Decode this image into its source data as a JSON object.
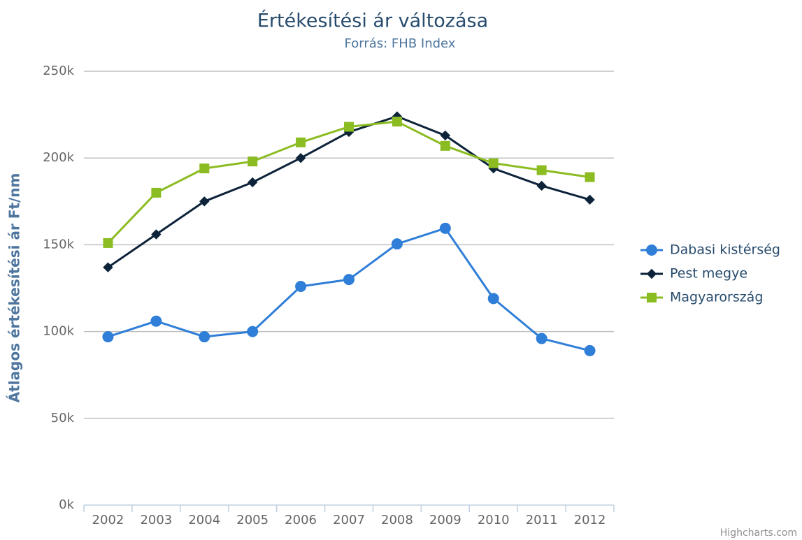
{
  "chart_data": {
    "type": "line",
    "title": "Értékesítési ár változása",
    "subtitle": "Forrás: FHB Index",
    "y_axis_label": "Átlagos értékesítési ár Ft/nm",
    "credits": "Highcharts.com",
    "categories": [
      "2002",
      "2003",
      "2004",
      "2005",
      "2006",
      "2007",
      "2008",
      "2009",
      "2010",
      "2011",
      "2012"
    ],
    "series": [
      {
        "name": "Dabasi kistérség",
        "color": "#2f7ed8",
        "marker": "circle",
        "values": [
          97000,
          106000,
          97000,
          100000,
          126000,
          130000,
          150500,
          159500,
          119000,
          96000,
          89000
        ]
      },
      {
        "name": "Pest megye",
        "color": "#0d233a",
        "marker": "diamond",
        "values": [
          137000,
          156000,
          175000,
          186000,
          200000,
          215000,
          224000,
          213000,
          194000,
          184000,
          176000
        ]
      },
      {
        "name": "Magyarország",
        "color": "#8bbc21",
        "marker": "square",
        "values": [
          151000,
          180000,
          194000,
          198000,
          209000,
          218000,
          221000,
          207000,
          197000,
          193000,
          189000
        ]
      }
    ],
    "ylim": [
      0,
      250000
    ],
    "yticks": [
      {
        "value": 0,
        "label": "0k"
      },
      {
        "value": 50000,
        "label": "50k"
      },
      {
        "value": 100000,
        "label": "100k"
      },
      {
        "value": 150000,
        "label": "150k"
      },
      {
        "value": 200000,
        "label": "200k"
      },
      {
        "value": 250000,
        "label": "250k"
      }
    ],
    "grid": true,
    "legend": "right"
  }
}
